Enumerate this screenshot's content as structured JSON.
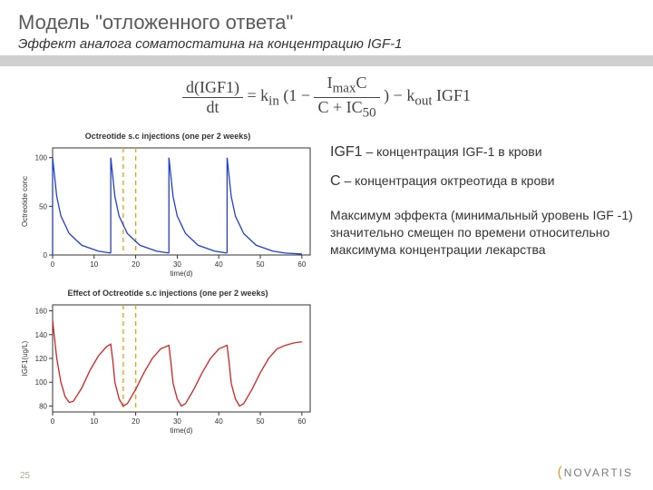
{
  "title": "Модель \"отложенного ответа\"",
  "subtitle": "Эффект аналога соматостатина на  концентрацию IGF-1",
  "equation": {
    "lhs_num": "d(IGF1)",
    "lhs_den": "dt",
    "eq": " = ",
    "kin": "k",
    "kin_sub": "in",
    "open": "(1 − ",
    "frac2_num": "I",
    "frac2_num2": "C",
    "frac2_num_sub": "max",
    "frac2_den1": "C + IC",
    "frac2_den_sub": "50",
    "close": ") − ",
    "kout": "k",
    "kout_sub": "out",
    "tail": "IGF1"
  },
  "chart1": {
    "title": "Octreotide s.c injections (one per 2 weeks)",
    "ylabel": "Octreotide conc",
    "xlabel": "time(d)",
    "line_color": "#1f3fd6",
    "axis_color": "#333333",
    "dash_color": "#e6a817",
    "xticks": [
      "0",
      "10",
      "20",
      "30",
      "40",
      "50",
      "60"
    ],
    "yticks": [
      "0",
      "50",
      "100"
    ],
    "peaks_x": [
      0,
      14,
      28,
      42
    ],
    "decay_points": [
      [
        [
          0,
          100
        ],
        [
          1,
          60
        ],
        [
          2,
          40
        ],
        [
          4,
          22
        ],
        [
          7,
          10
        ],
        [
          11,
          4
        ],
        [
          14,
          2
        ]
      ],
      [
        [
          14,
          100
        ],
        [
          15,
          60
        ],
        [
          16,
          40
        ],
        [
          18,
          22
        ],
        [
          21,
          10
        ],
        [
          25,
          4
        ],
        [
          28,
          2
        ]
      ],
      [
        [
          28,
          100
        ],
        [
          29,
          60
        ],
        [
          30,
          40
        ],
        [
          32,
          22
        ],
        [
          35,
          10
        ],
        [
          39,
          4
        ],
        [
          42,
          2
        ]
      ],
      [
        [
          42,
          100
        ],
        [
          43,
          60
        ],
        [
          44,
          40
        ],
        [
          46,
          22
        ],
        [
          49,
          10
        ],
        [
          53,
          4
        ],
        [
          56,
          2
        ],
        [
          60,
          1
        ]
      ]
    ],
    "dashes_x": [
      17,
      20
    ],
    "ylim": [
      0,
      110
    ],
    "xlim": [
      0,
      62
    ]
  },
  "chart2": {
    "title": "Effect of Octreotide s.c injections (one per 2 weeks)",
    "ylabel": "IGF1(ug/L)",
    "xlabel": "time(d)",
    "line_color": "#d62222",
    "axis_color": "#333333",
    "dash_color": "#e6a817",
    "xticks": [
      "0",
      "10",
      "20",
      "30",
      "40",
      "50",
      "60"
    ],
    "yticks": [
      "80",
      "100",
      "120",
      "140",
      "160"
    ],
    "curve": [
      [
        0,
        152
      ],
      [
        1,
        120
      ],
      [
        2,
        100
      ],
      [
        3,
        88
      ],
      [
        4,
        83
      ],
      [
        5,
        84
      ],
      [
        7,
        95
      ],
      [
        9,
        110
      ],
      [
        11,
        122
      ],
      [
        13,
        130
      ],
      [
        14,
        132
      ],
      [
        14.5,
        118
      ],
      [
        15,
        100
      ],
      [
        16,
        86
      ],
      [
        17,
        80
      ],
      [
        18,
        82
      ],
      [
        20,
        94
      ],
      [
        22,
        108
      ],
      [
        24,
        120
      ],
      [
        26,
        128
      ],
      [
        28,
        131
      ],
      [
        28.5,
        116
      ],
      [
        29,
        99
      ],
      [
        30,
        86
      ],
      [
        31,
        80
      ],
      [
        32,
        82
      ],
      [
        34,
        94
      ],
      [
        36,
        108
      ],
      [
        38,
        120
      ],
      [
        40,
        128
      ],
      [
        42,
        131
      ],
      [
        42.5,
        116
      ],
      [
        43,
        99
      ],
      [
        44,
        86
      ],
      [
        45,
        80
      ],
      [
        46,
        82
      ],
      [
        48,
        94
      ],
      [
        50,
        108
      ],
      [
        52,
        120
      ],
      [
        54,
        128
      ],
      [
        56,
        131
      ],
      [
        58,
        133
      ],
      [
        60,
        134
      ]
    ],
    "dashes_x": [
      17,
      20
    ],
    "ylim": [
      75,
      165
    ],
    "xlim": [
      0,
      62
    ]
  },
  "definitions": [
    {
      "sym": "IGF1",
      "text": " – концентрация IGF-1 в крови"
    },
    {
      "sym": "C",
      "text": " – концентрация октреотида в крови"
    }
  ],
  "paragraph": "Максимум эффекта (минимальный уровень IGF -1) значительно смещен по времени относительно максимума концентрации лекарства",
  "slide_number": "25",
  "brand": "NOVARTIS"
}
